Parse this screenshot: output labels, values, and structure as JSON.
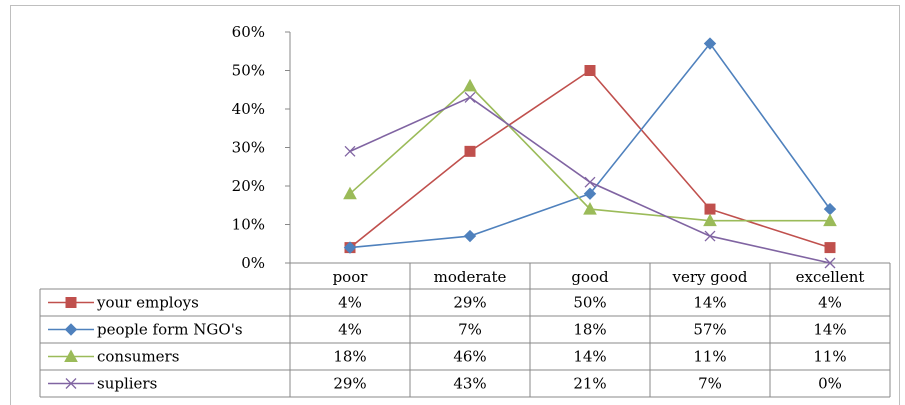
{
  "chart_data": {
    "type": "line",
    "categories": [
      "poor",
      "moderate",
      "good",
      "very good",
      "excellent"
    ],
    "yticks": [
      "0%",
      "10%",
      "20%",
      "30%",
      "40%",
      "50%",
      "60%"
    ],
    "ylim": [
      0,
      60
    ],
    "grid": false,
    "legend": "data-table",
    "series": [
      {
        "name": "your employs",
        "color": "#c0504d",
        "marker": "square",
        "values": [
          4,
          29,
          50,
          14,
          4
        ],
        "labels": [
          "4%",
          "29%",
          "50%",
          "14%",
          "4%"
        ]
      },
      {
        "name": "people form NGO's",
        "color": "#4f81bd",
        "marker": "diamond",
        "values": [
          4,
          7,
          18,
          57,
          14
        ],
        "labels": [
          "4%",
          "7%",
          "18%",
          "57%",
          "14%"
        ]
      },
      {
        "name": "consumers",
        "color": "#9bbb59",
        "marker": "triangle",
        "values": [
          18,
          46,
          14,
          11,
          11
        ],
        "labels": [
          "18%",
          "46%",
          "14%",
          "11%",
          "11%"
        ]
      },
      {
        "name": "supliers",
        "color": "#8064a2",
        "marker": "x",
        "values": [
          29,
          43,
          21,
          7,
          0
        ],
        "labels": [
          "29%",
          "43%",
          "21%",
          "7%",
          "0%"
        ]
      }
    ]
  }
}
